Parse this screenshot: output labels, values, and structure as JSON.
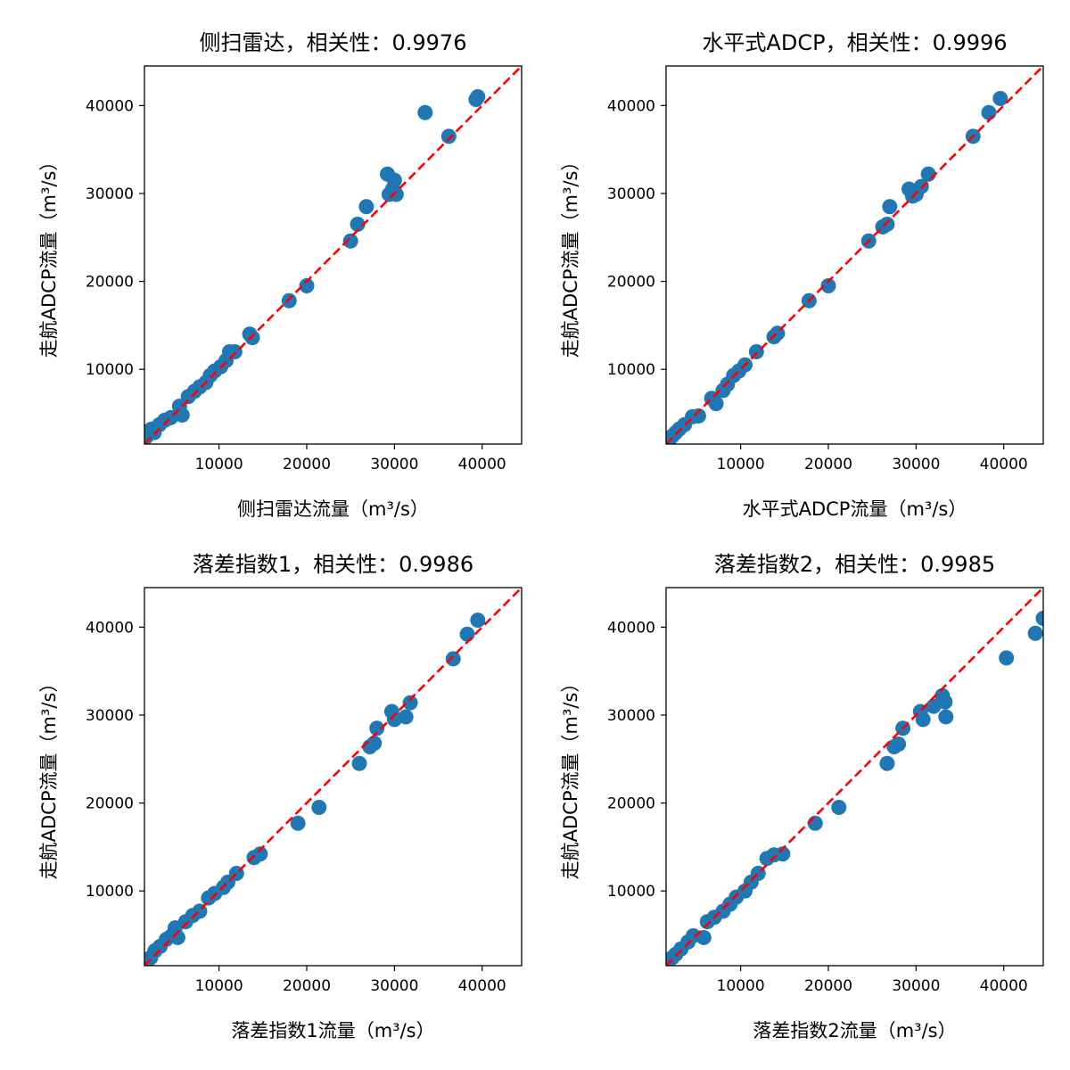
{
  "chart_data": [
    {
      "type": "scatter",
      "title": "侧扫雷达，相关性：0.9976",
      "xlabel": "侧扫雷达流量（m³/s）",
      "ylabel": "走航ADCP流量（m³/s）",
      "xlim": [
        1500,
        44500
      ],
      "ylim": [
        1500,
        44500
      ],
      "xticks": [
        10000,
        20000,
        30000,
        40000
      ],
      "yticks": [
        10000,
        20000,
        30000,
        40000
      ],
      "marker_color": "#1f77b4",
      "reference_line": {
        "style": "dashed",
        "color": "#ff0000",
        "from": [
          1500,
          1500
        ],
        "to": [
          44500,
          44500
        ]
      },
      "x": [
        1700,
        2000,
        2300,
        2600,
        3200,
        3800,
        4500,
        5500,
        5800,
        6500,
        7200,
        7800,
        8500,
        9000,
        9500,
        10200,
        10800,
        11200,
        11800,
        13500,
        13800,
        18000,
        20000,
        25000,
        25800,
        26800,
        29200,
        29400,
        29800,
        30000,
        30200,
        33500,
        36200,
        39300,
        39500
      ],
      "y": [
        2300,
        3000,
        3200,
        2800,
        3700,
        4200,
        4500,
        5800,
        4800,
        6900,
        7500,
        8000,
        8500,
        9300,
        9800,
        10300,
        11000,
        12000,
        12000,
        14000,
        13600,
        17800,
        19500,
        24600,
        26500,
        28500,
        32200,
        29900,
        30500,
        31500,
        29900,
        39200,
        36500,
        40700,
        41000
      ]
    },
    {
      "type": "scatter",
      "title": "水平式ADCP，相关性：0.9996",
      "xlabel": "水平式ADCP流量（m³/s）",
      "ylabel": "走航ADCP流量（m³/s）",
      "xlim": [
        1500,
        44500
      ],
      "ylim": [
        1500,
        44500
      ],
      "xticks": [
        10000,
        20000,
        30000,
        40000
      ],
      "yticks": [
        10000,
        20000,
        30000,
        40000
      ],
      "marker_color": "#1f77b4",
      "reference_line": {
        "style": "dashed",
        "color": "#ff0000",
        "from": [
          1500,
          1500
        ],
        "to": [
          44500,
          44500
        ]
      },
      "x": [
        1800,
        2200,
        2600,
        3000,
        3600,
        4500,
        5200,
        6700,
        7200,
        8000,
        8500,
        9200,
        9800,
        10500,
        11800,
        13800,
        14200,
        17800,
        20000,
        24600,
        26200,
        26700,
        27000,
        29200,
        29600,
        30000,
        30600,
        31400,
        36500,
        38300,
        39600
      ],
      "y": [
        1800,
        2400,
        2800,
        3200,
        3700,
        4600,
        4700,
        6700,
        6100,
        7600,
        8300,
        9300,
        9800,
        10500,
        12000,
        13700,
        14100,
        17800,
        19500,
        24600,
        26200,
        26500,
        28500,
        30500,
        29700,
        29900,
        30800,
        32200,
        36500,
        39200,
        40800
      ]
    },
    {
      "type": "scatter",
      "title": "落差指数1，相关性：0.9986",
      "xlabel": "落差指数1流量（m³/s）",
      "ylabel": "走航ADCP流量（m³/s）",
      "xlim": [
        1500,
        44500
      ],
      "ylim": [
        1500,
        44500
      ],
      "xticks": [
        10000,
        20000,
        30000,
        40000
      ],
      "yticks": [
        10000,
        20000,
        30000,
        40000
      ],
      "marker_color": "#1f77b4",
      "reference_line": {
        "style": "dashed",
        "color": "#ff0000",
        "from": [
          1500,
          1500
        ],
        "to": [
          44500,
          44500
        ]
      },
      "x": [
        1700,
        2200,
        2700,
        3300,
        4000,
        4600,
        5000,
        5300,
        6200,
        7000,
        7800,
        8800,
        9500,
        10500,
        11000,
        12000,
        14000,
        14700,
        19000,
        21400,
        26000,
        27200,
        27700,
        28000,
        29700,
        30000,
        31300,
        31800,
        36700,
        38300,
        39500
      ],
      "y": [
        1600,
        2400,
        3200,
        3700,
        4500,
        4900,
        5800,
        4700,
        6500,
        7200,
        7700,
        9200,
        9700,
        10400,
        11000,
        12000,
        13800,
        14200,
        17700,
        19500,
        24500,
        26400,
        26800,
        28500,
        30400,
        29500,
        29800,
        31400,
        36400,
        39200,
        40800
      ]
    },
    {
      "type": "scatter",
      "title": "落差指数2，相关性：0.9985",
      "xlabel": "落差指数2流量（m³/s）",
      "ylabel": "走航ADCP流量（m³/s）",
      "xlim": [
        1500,
        44500
      ],
      "ylim": [
        1500,
        44500
      ],
      "xticks": [
        10000,
        20000,
        30000,
        40000
      ],
      "yticks": [
        10000,
        20000,
        30000,
        40000
      ],
      "marker_color": "#1f77b4",
      "reference_line": {
        "style": "dashed",
        "color": "#ff0000",
        "from": [
          1500,
          1500
        ],
        "to": [
          44500,
          44500
        ]
      },
      "x": [
        1700,
        2200,
        2600,
        3200,
        4000,
        4600,
        5800,
        6200,
        7000,
        8000,
        8800,
        9500,
        10500,
        11200,
        12000,
        13000,
        13800,
        14800,
        18500,
        21200,
        26700,
        27500,
        28000,
        28500,
        30500,
        30800,
        32000,
        33000,
        33300,
        33400,
        40300,
        43600,
        44500
      ],
      "y": [
        1600,
        2400,
        2800,
        3400,
        4200,
        4900,
        4700,
        6500,
        7000,
        7700,
        8500,
        9300,
        10000,
        11000,
        12000,
        13700,
        14100,
        14200,
        17700,
        19500,
        24500,
        26400,
        26700,
        28500,
        30400,
        29500,
        31000,
        32200,
        31500,
        29800,
        36500,
        39300,
        41000
      ]
    }
  ]
}
